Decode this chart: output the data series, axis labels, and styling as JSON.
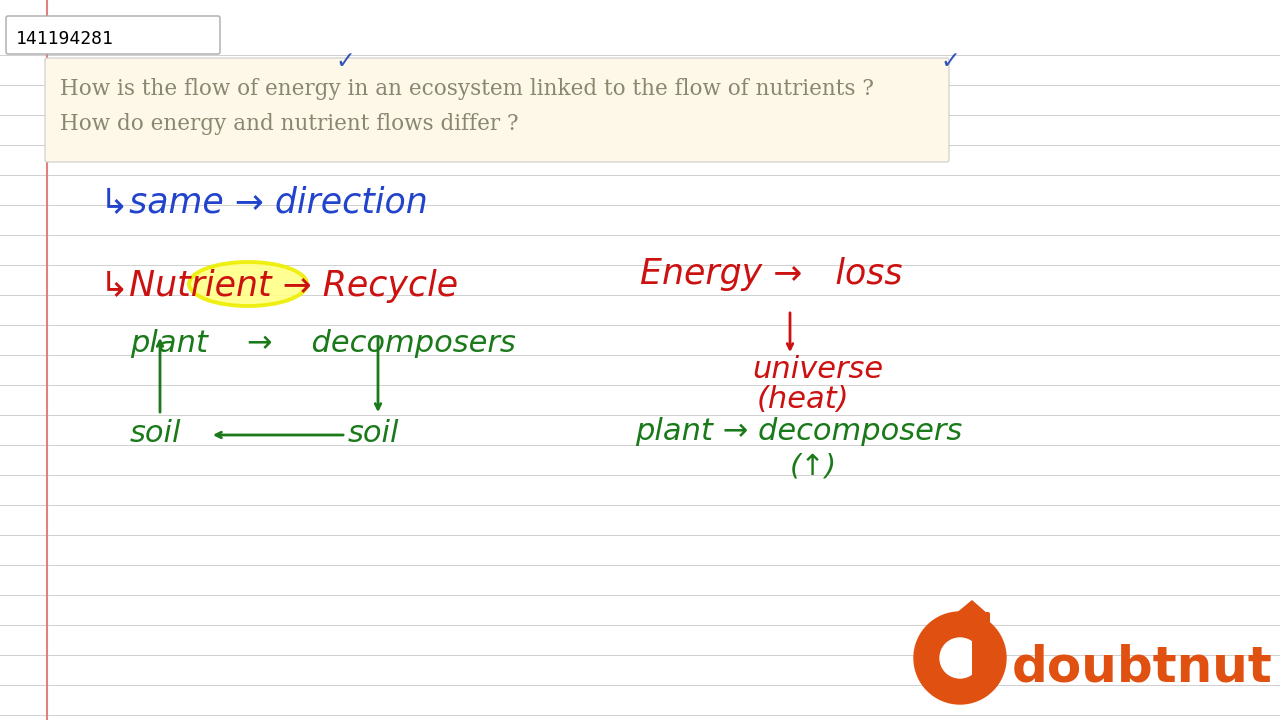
{
  "bg_color": "#ffffff",
  "ruled_line_color": "#d0d0d0",
  "margin_line_color": "#e08080",
  "header_bg": "#fdf8e8",
  "header_border": "#cccccc",
  "id_text": "141194281",
  "id_border": "#aaaaaa",
  "question_line1": "How is the flow of energy in an ecosystem linked to the flow of nutrients ?",
  "question_line2": "How do energy and nutrient flows differ ?",
  "question_color": "#888870",
  "check_color": "#3355bb",
  "same_dir_text": "↳same → direction",
  "same_dir_color": "#2244cc",
  "nutrient_text": "↳Nutrient → Recycle",
  "nutrient_color": "#cc1111",
  "ellipse_edge": "#eeee00",
  "ellipse_face": "#ffff88",
  "plant_decomp_left": "plant    →    decomposers",
  "soil_left_text": "soil",
  "soil_right_text": "soil",
  "green_color": "#1a7a1a",
  "energy_loss_text": "Energy →   loss",
  "energy_color": "#cc1111",
  "universe_text": "universe",
  "heat_text": "(heat)",
  "plant_decomp_right": "plant → decomposers",
  "up_circle_text": "(↑)",
  "doubtnut_color": "#e05010",
  "doubtnut_text": "doubtnut"
}
